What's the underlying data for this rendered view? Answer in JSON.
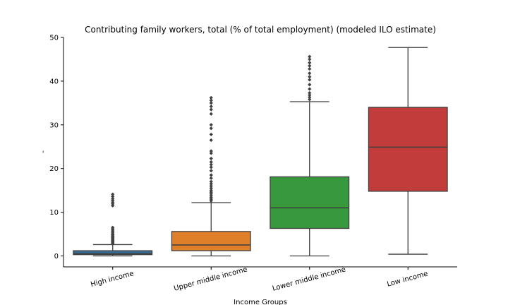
{
  "chart_data": {
    "type": "box",
    "title": "Contributing family workers, total (% of total employment) (modeled ILO estimate)",
    "xlabel": "Income Groups",
    "ylabel": "-",
    "ylim": [
      -2.5,
      50
    ],
    "yticks": [
      0,
      10,
      20,
      30,
      40,
      50
    ],
    "grid": false,
    "categories": [
      "High income",
      "Upper middle income",
      "Lower middle income",
      "Low income"
    ],
    "colors": [
      "#3a6f97",
      "#e07f2a",
      "#37983d",
      "#c13c3b"
    ],
    "boxes": [
      {
        "category": "High income",
        "whisker_low": 0.0,
        "q1": 0.3,
        "median": 0.6,
        "q3": 1.2,
        "whisker_high": 2.6,
        "outliers": [
          2.8,
          3.0,
          3.2,
          3.4,
          3.6,
          3.8,
          4.0,
          4.2,
          4.4,
          4.6,
          4.8,
          5.0,
          5.3,
          5.6,
          5.9,
          6.2,
          6.5,
          11.5,
          11.9,
          12.3,
          12.7,
          13.1,
          13.6,
          14.1
        ]
      },
      {
        "category": "Upper middle income",
        "whisker_low": 0.0,
        "q1": 1.2,
        "median": 2.5,
        "q3": 5.6,
        "whisker_high": 12.2,
        "outliers": [
          12.6,
          13.0,
          13.4,
          13.8,
          14.2,
          14.6,
          15.0,
          15.5,
          16.0,
          16.5,
          17.0,
          17.8,
          18.5,
          19.5,
          20.3,
          20.9,
          21.5,
          22.3,
          23.5,
          24.0,
          26.5,
          27.8,
          29.2,
          30.0,
          32.5,
          33.5,
          34.2,
          35.0,
          35.6,
          36.2
        ]
      },
      {
        "category": "Lower middle income",
        "whisker_low": 0.0,
        "q1": 6.3,
        "median": 11.0,
        "q3": 18.1,
        "whisker_high": 35.3,
        "outliers": [
          35.8,
          36.3,
          36.8,
          37.3,
          38.2,
          39.2,
          40.3,
          41.0,
          41.8,
          42.8,
          43.5,
          44.2,
          45.0,
          45.6
        ]
      },
      {
        "category": "Low income",
        "whisker_low": 0.4,
        "q1": 14.8,
        "median": 24.9,
        "q3": 34.0,
        "whisker_high": 47.7,
        "outliers": []
      }
    ]
  }
}
